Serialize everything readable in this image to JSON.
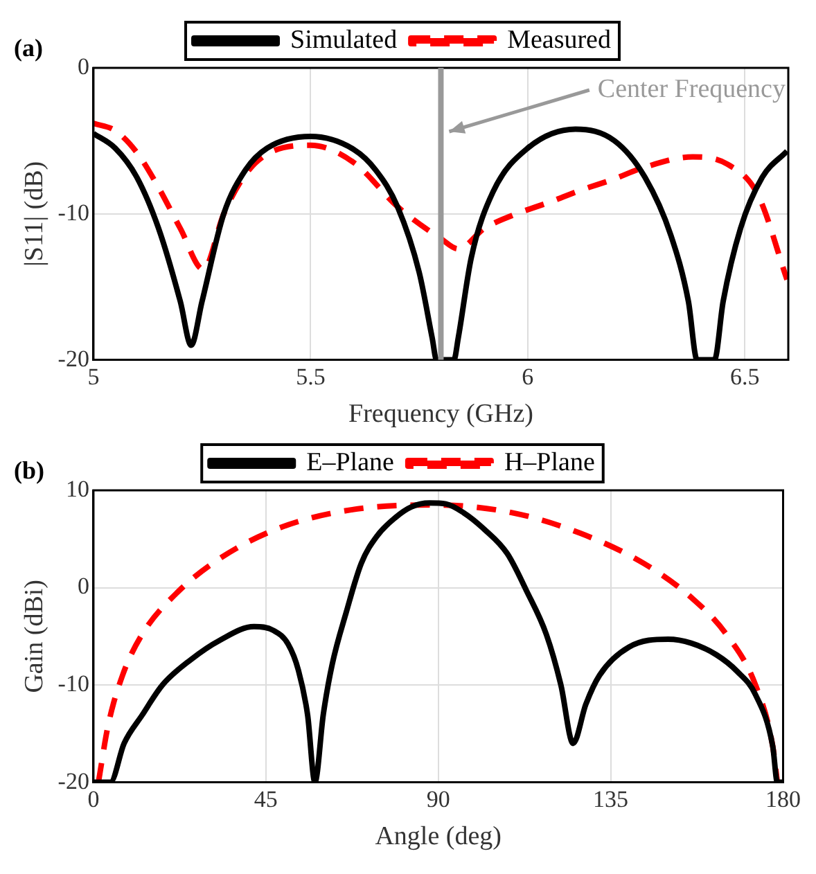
{
  "chart_data": [
    {
      "type": "line",
      "xlabel": "Frequency (GHz)",
      "ylabel": "|S11| (dB)",
      "xlim": [
        5,
        6.6
      ],
      "ylim": [
        -20,
        0
      ],
      "xticks": [
        5,
        5.5,
        6,
        6.5
      ],
      "yticks": [
        -20,
        -10,
        0
      ],
      "grid": true,
      "legend": "top",
      "annotations": [
        "(a)"
      ],
      "ref_lines": [
        {
          "axis": "x",
          "value": 5.8,
          "color": "#999999",
          "label": "Center Frequency"
        }
      ],
      "series": [
        {
          "name": "Simulated",
          "color": "#000000",
          "line_style": "solid",
          "x": [
            5.0,
            5.05,
            5.1,
            5.15,
            5.2,
            5.225,
            5.25,
            5.3,
            5.35,
            5.4,
            5.5,
            5.6,
            5.65,
            5.7,
            5.75,
            5.78,
            5.79,
            5.83,
            5.84,
            5.87,
            5.92,
            6.0,
            6.11,
            6.2,
            6.27,
            6.33,
            6.37,
            6.39,
            6.43,
            6.45,
            6.49,
            6.54,
            6.597
          ],
          "values": [
            -4.5,
            -5.5,
            -7.5,
            -11,
            -16,
            -19,
            -16,
            -10,
            -7,
            -5.5,
            -4.7,
            -5.6,
            -7,
            -9.5,
            -14,
            -18.5,
            -20,
            -20,
            -18.5,
            -13,
            -8.5,
            -5.5,
            -4.2,
            -5,
            -7.5,
            -11.5,
            -16,
            -20,
            -20,
            -16,
            -11,
            -7.5,
            -5.7
          ]
        },
        {
          "name": "Measured",
          "color": "#ff0000",
          "line_style": "dashed",
          "x": [
            5.0,
            5.05,
            5.1,
            5.15,
            5.2,
            5.253,
            5.3,
            5.35,
            5.4,
            5.5,
            5.6,
            5.7,
            5.8,
            5.84,
            5.9,
            5.965,
            6.05,
            6.12,
            6.2,
            6.26,
            6.38,
            6.46,
            6.53,
            6.597
          ],
          "values": [
            -3.8,
            -4.3,
            -5.8,
            -8.2,
            -11,
            -13.8,
            -10,
            -7.3,
            -5.9,
            -5.3,
            -6.5,
            -9.5,
            -11.7,
            -12.4,
            -11,
            -10.1,
            -9.2,
            -8.4,
            -7.6,
            -6.9,
            -6.1,
            -6.6,
            -8.7,
            -14.5
          ]
        }
      ]
    },
    {
      "type": "line",
      "xlabel": "Angle (deg)",
      "ylabel": "Gain (dBi)",
      "xlim": [
        0,
        180
      ],
      "ylim": [
        -20,
        10
      ],
      "xticks": [
        0,
        45,
        90,
        135,
        180
      ],
      "yticks": [
        -20,
        -10,
        0,
        10
      ],
      "grid": true,
      "legend": "top",
      "annotations": [
        "(b)"
      ],
      "series": [
        {
          "name": "E–Plane",
          "color": "#000000",
          "line_style": "solid",
          "x": [
            0,
            4.4,
            8,
            12.7,
            18,
            25.4,
            33,
            41.9,
            47,
            50.8,
            53.5,
            55.9,
            57.8,
            60,
            62.3,
            66,
            69.9,
            74,
            78.8,
            83,
            87.7,
            92,
            96.6,
            102,
            108,
            113,
            118.2,
            122,
            125.2,
            128.5,
            132.1,
            139.8,
            150,
            156,
            162.6,
            168,
            172.8,
            177.3,
            178.5,
            180
          ],
          "values": [
            -20,
            -20,
            -16,
            -13.1,
            -10,
            -7.4,
            -5.4,
            -4.0,
            -4.4,
            -5.8,
            -8.5,
            -13.1,
            -20,
            -13,
            -7.9,
            -2.5,
            2.5,
            5.3,
            7.2,
            8.3,
            8.7,
            8.6,
            7.7,
            6,
            3.5,
            -0.3,
            -4.8,
            -10,
            -16,
            -12,
            -9.0,
            -6.1,
            -5.3,
            -5.7,
            -6.9,
            -8.6,
            -11,
            -16.3,
            -20,
            -20
          ]
        },
        {
          "name": "H–Plane",
          "color": "#ff0000",
          "line_style": "dashed",
          "x": [
            1.3,
            3.8,
            7.6,
            12.7,
            21.6,
            33,
            48.3,
            67.3,
            89,
            109.3,
            127,
            143.6,
            156.3,
            165.2,
            172.8,
            177.3,
            178.5
          ],
          "values": [
            -20,
            -14.2,
            -9,
            -4.8,
            -0.6,
            3.0,
            6.1,
            8.0,
            8.5,
            7.7,
            5.6,
            2.5,
            -1.1,
            -4.8,
            -10,
            -16.3,
            -20
          ]
        }
      ]
    }
  ]
}
